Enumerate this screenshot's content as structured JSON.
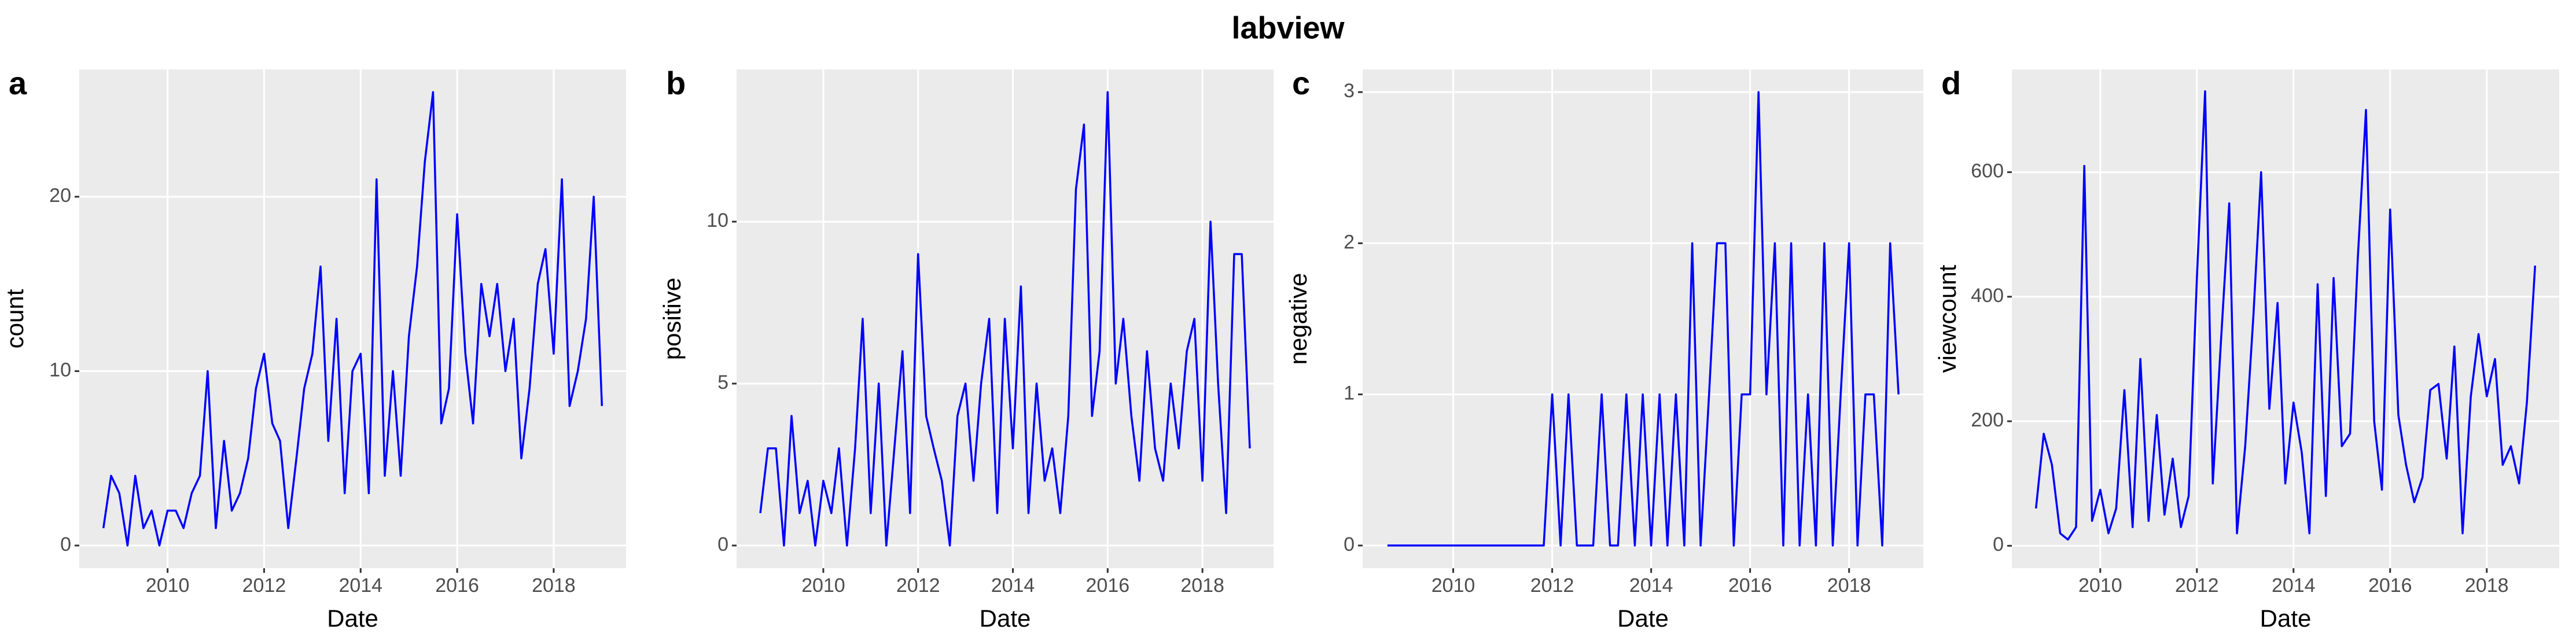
{
  "title": "labview",
  "chart_data": [
    {
      "type": "line",
      "panel_label": "a",
      "ylabel": "count",
      "xlabel": "Date",
      "color": "#0000ff",
      "grid": true,
      "xlim": [
        2008.17,
        2019.5
      ],
      "xticks": [
        2010,
        2012,
        2014,
        2016,
        2018
      ],
      "ylim": [
        -1.3,
        27.3
      ],
      "yticks": [
        0,
        10,
        20
      ],
      "x": [
        2008.67,
        2008.83,
        2009,
        2009.17,
        2009.33,
        2009.5,
        2009.67,
        2009.83,
        2010,
        2010.17,
        2010.33,
        2010.5,
        2010.67,
        2010.83,
        2011,
        2011.17,
        2011.33,
        2011.5,
        2011.67,
        2011.83,
        2012,
        2012.17,
        2012.33,
        2012.5,
        2012.67,
        2012.83,
        2013,
        2013.17,
        2013.33,
        2013.5,
        2013.67,
        2013.83,
        2014,
        2014.17,
        2014.33,
        2014.5,
        2014.67,
        2014.83,
        2015,
        2015.17,
        2015.33,
        2015.5,
        2015.67,
        2015.83,
        2016,
        2016.17,
        2016.33,
        2016.5,
        2016.67,
        2016.83,
        2017,
        2017.17,
        2017.33,
        2017.5,
        2017.67,
        2017.83,
        2018,
        2018.17,
        2018.33,
        2018.5,
        2018.67,
        2018.83,
        2019
      ],
      "values": [
        1,
        4,
        3,
        0,
        4,
        1,
        2,
        0,
        2,
        2,
        1,
        3,
        4,
        10,
        1,
        6,
        2,
        3,
        5,
        9,
        11,
        7,
        6,
        1,
        5,
        9,
        11,
        16,
        6,
        13,
        3,
        10,
        11,
        3,
        21,
        4,
        10,
        4,
        12,
        16,
        22,
        26,
        7,
        9,
        19,
        11,
        7,
        15,
        12,
        15,
        10,
        13,
        5,
        9,
        15,
        17,
        11,
        21,
        8,
        10,
        13,
        20,
        8
      ]
    },
    {
      "type": "line",
      "panel_label": "b",
      "ylabel": "positive",
      "xlabel": "Date",
      "color": "#0000ff",
      "grid": true,
      "xlim": [
        2008.17,
        2019.5
      ],
      "xticks": [
        2010,
        2012,
        2014,
        2016,
        2018
      ],
      "ylim": [
        -0.7,
        14.7
      ],
      "yticks": [
        0,
        5,
        10
      ],
      "x": [
        2008.67,
        2008.83,
        2009,
        2009.17,
        2009.33,
        2009.5,
        2009.67,
        2009.83,
        2010,
        2010.17,
        2010.33,
        2010.5,
        2010.67,
        2010.83,
        2011,
        2011.17,
        2011.33,
        2011.5,
        2011.67,
        2011.83,
        2012,
        2012.17,
        2012.33,
        2012.5,
        2012.67,
        2012.83,
        2013,
        2013.17,
        2013.33,
        2013.5,
        2013.67,
        2013.83,
        2014,
        2014.17,
        2014.33,
        2014.5,
        2014.67,
        2014.83,
        2015,
        2015.17,
        2015.33,
        2015.5,
        2015.67,
        2015.83,
        2016,
        2016.17,
        2016.33,
        2016.5,
        2016.67,
        2016.83,
        2017,
        2017.17,
        2017.33,
        2017.5,
        2017.67,
        2017.83,
        2018,
        2018.17,
        2018.33,
        2018.5,
        2018.67,
        2018.83,
        2019
      ],
      "values": [
        1,
        3,
        3,
        0,
        4,
        1,
        2,
        0,
        2,
        1,
        3,
        0,
        3,
        7,
        1,
        5,
        0,
        3,
        6,
        1,
        9,
        4,
        3,
        2,
        0,
        4,
        5,
        2,
        5,
        7,
        1,
        7,
        3,
        8,
        1,
        5,
        2,
        3,
        1,
        4,
        11,
        13,
        4,
        6,
        14,
        5,
        7,
        4,
        2,
        6,
        3,
        2,
        5,
        3,
        6,
        7,
        2,
        10,
        5,
        1,
        9,
        9,
        3
      ]
    },
    {
      "type": "line",
      "panel_label": "c",
      "ylabel": "negative",
      "xlabel": "Date",
      "color": "#0000ff",
      "grid": true,
      "xlim": [
        2008.17,
        2019.5
      ],
      "xticks": [
        2010,
        2012,
        2014,
        2016,
        2018
      ],
      "ylim": [
        -0.15,
        3.15
      ],
      "yticks": [
        0,
        1,
        2,
        3
      ],
      "x": [
        2008.67,
        2008.83,
        2009,
        2009.17,
        2009.33,
        2009.5,
        2009.67,
        2009.83,
        2010,
        2010.17,
        2010.33,
        2010.5,
        2010.67,
        2010.83,
        2011,
        2011.17,
        2011.33,
        2011.5,
        2011.67,
        2011.83,
        2012,
        2012.17,
        2012.33,
        2012.5,
        2012.67,
        2012.83,
        2013,
        2013.17,
        2013.33,
        2013.5,
        2013.67,
        2013.83,
        2014,
        2014.17,
        2014.33,
        2014.5,
        2014.67,
        2014.83,
        2015,
        2015.17,
        2015.33,
        2015.5,
        2015.67,
        2015.83,
        2016,
        2016.17,
        2016.33,
        2016.5,
        2016.67,
        2016.83,
        2017,
        2017.17,
        2017.33,
        2017.5,
        2017.67,
        2017.83,
        2018,
        2018.17,
        2018.33,
        2018.5,
        2018.67,
        2018.83,
        2019
      ],
      "values": [
        0,
        0,
        0,
        0,
        0,
        0,
        0,
        0,
        0,
        0,
        0,
        0,
        0,
        0,
        0,
        0,
        0,
        0,
        0,
        0,
        1,
        0,
        1,
        0,
        0,
        0,
        1,
        0,
        0,
        1,
        0,
        1,
        0,
        1,
        0,
        1,
        0,
        2,
        0,
        1,
        2,
        2,
        0,
        1,
        1,
        3,
        1,
        2,
        0,
        2,
        0,
        1,
        0,
        2,
        0,
        1,
        2,
        0,
        1,
        1,
        0,
        2,
        1
      ]
    },
    {
      "type": "line",
      "panel_label": "d",
      "ylabel": "viewcount",
      "xlabel": "Date",
      "color": "#0000ff",
      "grid": true,
      "xlim": [
        2008.17,
        2019.5
      ],
      "xticks": [
        2010,
        2012,
        2014,
        2016,
        2018
      ],
      "ylim": [
        -36,
        765
      ],
      "yticks": [
        0,
        200,
        400,
        600
      ],
      "x": [
        2008.67,
        2008.83,
        2009,
        2009.17,
        2009.33,
        2009.5,
        2009.67,
        2009.83,
        2010,
        2010.17,
        2010.33,
        2010.5,
        2010.67,
        2010.83,
        2011,
        2011.17,
        2011.33,
        2011.5,
        2011.67,
        2011.83,
        2012,
        2012.17,
        2012.33,
        2012.5,
        2012.67,
        2012.83,
        2013,
        2013.17,
        2013.33,
        2013.5,
        2013.67,
        2013.83,
        2014,
        2014.17,
        2014.33,
        2014.5,
        2014.67,
        2014.83,
        2015,
        2015.17,
        2015.33,
        2015.5,
        2015.67,
        2015.83,
        2016,
        2016.17,
        2016.33,
        2016.5,
        2016.67,
        2016.83,
        2017,
        2017.17,
        2017.33,
        2017.5,
        2017.67,
        2017.83,
        2018,
        2018.17,
        2018.33,
        2018.5,
        2018.67,
        2018.83,
        2019
      ],
      "values": [
        60,
        180,
        130,
        20,
        10,
        30,
        610,
        40,
        90,
        20,
        60,
        250,
        30,
        300,
        40,
        210,
        50,
        140,
        30,
        80,
        430,
        730,
        100,
        330,
        550,
        20,
        160,
        370,
        600,
        220,
        390,
        100,
        230,
        150,
        20,
        420,
        80,
        430,
        160,
        180,
        460,
        700,
        200,
        90,
        540,
        210,
        130,
        70,
        110,
        250,
        260,
        140,
        320,
        20,
        240,
        340,
        240,
        300,
        130,
        160,
        100,
        230,
        450
      ]
    }
  ]
}
